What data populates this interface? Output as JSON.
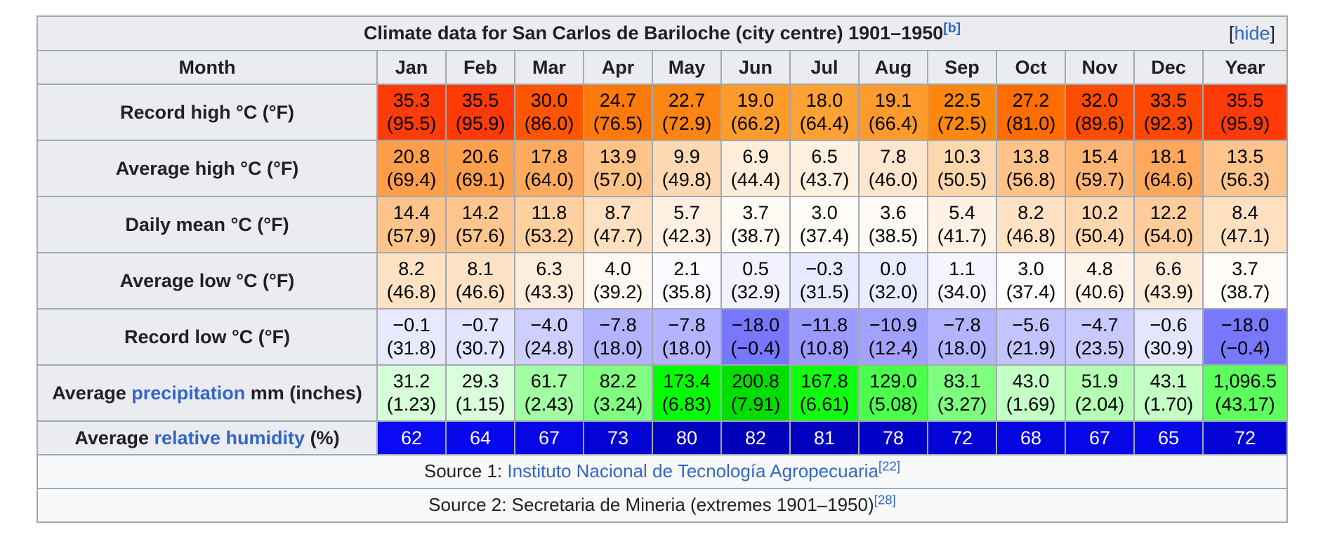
{
  "caption": {
    "title": "Climate data for San Carlos de Bariloche (city centre) 1901–1950",
    "note": "[b]",
    "hide_open": "[",
    "hide": "hide",
    "hide_close": "]"
  },
  "header": {
    "month": "Month",
    "months": [
      "Jan",
      "Feb",
      "Mar",
      "Apr",
      "May",
      "Jun",
      "Jul",
      "Aug",
      "Sep",
      "Oct",
      "Nov",
      "Dec"
    ],
    "year": "Year"
  },
  "rows": [
    {
      "label": "Record high °C (°F)",
      "c": [
        "35.3",
        "35.5",
        "30.0",
        "24.7",
        "22.7",
        "19.0",
        "18.0",
        "19.1",
        "22.5",
        "27.2",
        "32.0",
        "33.5",
        "35.5"
      ],
      "f": [
        "(95.5)",
        "(95.9)",
        "(86.0)",
        "(76.5)",
        "(72.9)",
        "(66.2)",
        "(64.4)",
        "(66.4)",
        "(72.5)",
        "(81.0)",
        "(89.6)",
        "(92.3)",
        "(95.9)"
      ],
      "colors": [
        "#ff3b0a",
        "#ff3a08",
        "#ff5500",
        "#ff7a0a",
        "#ff8513",
        "#ff9b2d",
        "#ffa134",
        "#ff9b2e",
        "#ff870d",
        "#ff6c00",
        "#ff4c00",
        "#ff4704",
        "#ff3a08"
      ]
    },
    {
      "label": "Average high °C (°F)",
      "c": [
        "20.8",
        "20.6",
        "17.8",
        "13.9",
        "9.9",
        "6.9",
        "6.5",
        "7.8",
        "10.3",
        "13.8",
        "15.4",
        "18.1",
        "13.5"
      ],
      "f": [
        "(69.4)",
        "(69.1)",
        "(64.0)",
        "(57.0)",
        "(49.8)",
        "(44.4)",
        "(43.7)",
        "(46.0)",
        "(50.5)",
        "(56.8)",
        "(59.7)",
        "(64.6)",
        "(56.3)"
      ],
      "colors": [
        "#ff9e4a",
        "#ffa04c",
        "#ffab5f",
        "#ffc287",
        "#ffd9b4",
        "#ffeddb",
        "#fff0e0",
        "#ffe6cc",
        "#ffd7ad",
        "#ffc389",
        "#ffb675",
        "#ffa85c",
        "#ffc48c"
      ]
    },
    {
      "label": "Daily mean °C (°F)",
      "c": [
        "14.4",
        "14.2",
        "11.8",
        "8.7",
        "5.7",
        "3.7",
        "3.0",
        "3.6",
        "5.4",
        "8.2",
        "10.2",
        "12.2"
      ],
      "f": [
        "(57.9)",
        "(57.6)",
        "(53.2)",
        "(47.7)",
        "(42.3)",
        "(38.7)",
        "(37.4)",
        "(38.5)",
        "(41.7)",
        "(46.8)",
        "(50.4)",
        "(54.0)"
      ],
      "c_year": "8.4",
      "f_year": "(47.1)",
      "colors": [
        "#ffc48c",
        "#ffc58e",
        "#ffd09f",
        "#ffe0c0",
        "#fff0e2",
        "#fffaf4",
        "#fffcf8",
        "#fffaf5",
        "#fff1e4",
        "#ffe2c4",
        "#ffd8b0",
        "#ffcd9b",
        "#ffe1c2"
      ]
    },
    {
      "label": "Average low °C (°F)",
      "c": [
        "8.2",
        "8.1",
        "6.3",
        "4.0",
        "2.1",
        "0.5",
        "−0.3",
        "0.0",
        "1.1",
        "3.0",
        "4.8",
        "6.6",
        "3.7"
      ],
      "f": [
        "(46.8)",
        "(46.6)",
        "(43.3)",
        "(39.2)",
        "(35.8)",
        "(32.9)",
        "(31.5)",
        "(32.0)",
        "(34.0)",
        "(37.4)",
        "(40.6)",
        "(43.9)",
        "(38.7)"
      ],
      "colors": [
        "#ffe2c4",
        "#ffe2c5",
        "#ffeddb",
        "#fff9f3",
        "#fbfbff",
        "#f1f1ff",
        "#e9e9ff",
        "#ebebff",
        "#f5f5ff",
        "#fefcff",
        "#fff4ea",
        "#ffecd8",
        "#fffbf7"
      ]
    },
    {
      "label": "Record low °C (°F)",
      "c": [
        "−0.1",
        "−0.7",
        "−4.0",
        "−7.8",
        "−7.8",
        "−18.0",
        "−11.8",
        "−10.9",
        "−7.8",
        "−5.6",
        "−4.7",
        "−0.6",
        "−18.0"
      ],
      "f": [
        "(31.8)",
        "(30.7)",
        "(24.8)",
        "(18.0)",
        "(18.0)",
        "(−0.4)",
        "(10.8)",
        "(12.4)",
        "(18.0)",
        "(21.9)",
        "(23.5)",
        "(30.9)",
        "(−0.4)"
      ],
      "colors": [
        "#e8e8ff",
        "#e4e4ff",
        "#cfcfff",
        "#b3b3ff",
        "#b3b3ff",
        "#7777ff",
        "#9b9bff",
        "#a1a1ff",
        "#b3b3ff",
        "#c3c3ff",
        "#c9c9ff",
        "#e5e5ff",
        "#7777ff"
      ]
    },
    {
      "label_pre": "Average ",
      "label_link": "precipitation",
      "label_post": " mm (inches)",
      "c": [
        "31.2",
        "29.3",
        "61.7",
        "82.2",
        "173.4",
        "200.8",
        "167.8",
        "129.0",
        "83.1",
        "43.0",
        "51.9",
        "43.1",
        "1,096.5"
      ],
      "f": [
        "(1.23)",
        "(1.15)",
        "(2.43)",
        "(3.24)",
        "(6.83)",
        "(7.91)",
        "(6.61)",
        "(5.08)",
        "(3.27)",
        "(1.69)",
        "(2.04)",
        "(1.70)",
        "(43.17)"
      ],
      "colors": [
        "#d7ffd7",
        "#daffda",
        "#a3ffa3",
        "#80ff80",
        "#00ff00",
        "#00de00",
        "#10ff10",
        "#4dff4d",
        "#7fff7f",
        "#c4ffc4",
        "#b4ffb4",
        "#c4ffc4",
        "#5dff5d"
      ]
    },
    {
      "label_pre": "Average ",
      "label_link": "relative humidity",
      "label_post": " (%)",
      "c": [
        "62",
        "64",
        "67",
        "73",
        "80",
        "82",
        "81",
        "78",
        "72",
        "68",
        "67",
        "65",
        "72"
      ],
      "colors": [
        "#0a0af5",
        "#0808ef",
        "#0606e6",
        "#0303d4",
        "#0000c1",
        "#0000b9",
        "#0000bd",
        "#0000c8",
        "#0404d6",
        "#0505e2",
        "#0606e6",
        "#0707ec",
        "#0404d6"
      ]
    }
  ],
  "sources": {
    "s1_pre": "Source 1: ",
    "s1_link": "Instituto Nacional de Tecnología Agropecuaria",
    "s1_ref": "[22]",
    "s2_pre": "Source 2: Secretaria de Mineria (extremes 1901–1950)",
    "s2_ref": "[28]"
  },
  "text_colors": {
    "dark": "#000000",
    "light": "#ffffff"
  }
}
